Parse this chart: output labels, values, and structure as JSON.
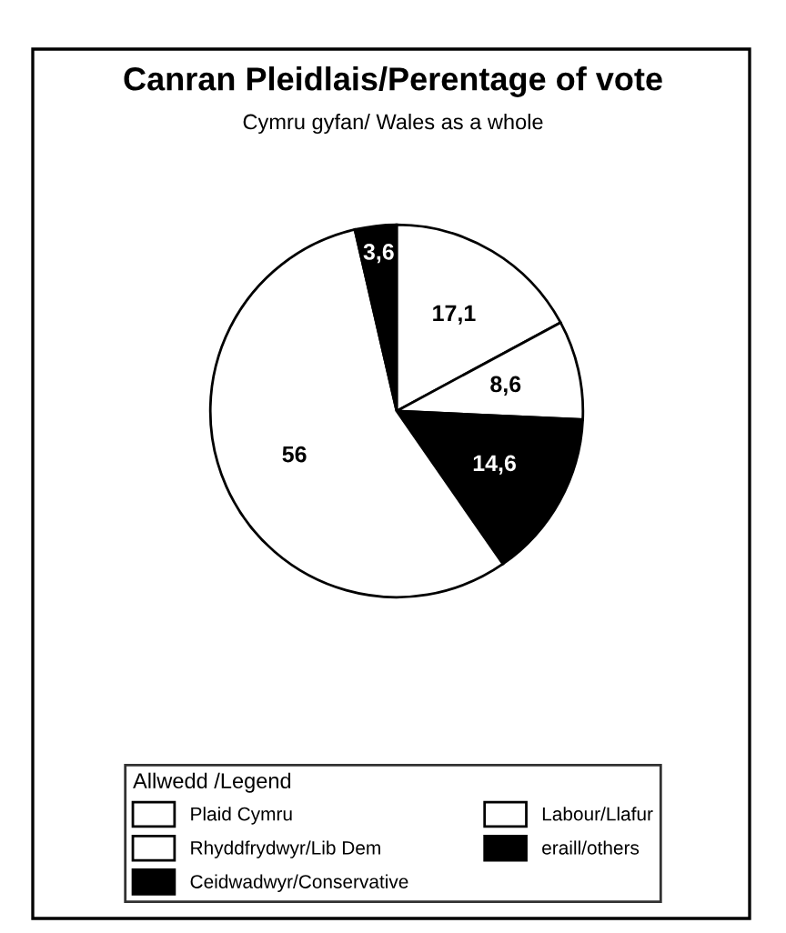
{
  "chart_data": {
    "type": "pie",
    "title": "Canran Pleidlais/Perentage of vote",
    "subtitle": "Cymru gyfan/ Wales as a whole",
    "legend_title": "Allwedd /Legend",
    "categories": [
      "Plaid Cymru",
      "Rhyddfrydwyr/Lib Dem",
      "Ceidwadwyr/Conservative",
      "Labour/Llafur",
      "eraill/others"
    ],
    "values": [
      17.1,
      8.6,
      14.6,
      56,
      3.6
    ],
    "value_labels": [
      "17,1",
      "8,6",
      "14,6",
      "56",
      "3,6"
    ],
    "colors": [
      "#ffffff",
      "#ffffff",
      "#000000",
      "#ffffff",
      "#000000"
    ],
    "legend": "bottom"
  }
}
